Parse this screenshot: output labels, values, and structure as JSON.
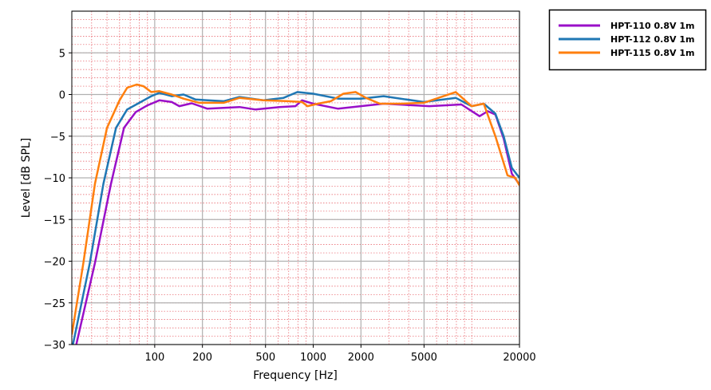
{
  "chart_data": {
    "type": "line",
    "title": "",
    "xlabel": "Frequency [Hz]",
    "ylabel": "Level [dB SPL]",
    "xscale": "log",
    "xlim": [
      30,
      20000
    ],
    "ylim": [
      -30,
      10
    ],
    "xticks": [
      100,
      200,
      500,
      1000,
      2000,
      5000,
      20000
    ],
    "xtick_labels": [
      "100",
      "200",
      "500",
      "1000",
      "2000",
      "5000",
      "20000"
    ],
    "yticks": [
      -30,
      -25,
      -20,
      -15,
      -10,
      -5,
      0,
      5
    ],
    "ytick_labels": [
      "−30",
      "−25",
      "−20",
      "−15",
      "−10",
      "−5",
      "0",
      "5"
    ],
    "grid": {
      "major": true,
      "minor": true,
      "major_color": "#b0b0b0",
      "minor_color": "#e0303a"
    },
    "legend": "outside-top-right",
    "series": [
      {
        "name": "HPT-110 0.8V 1m",
        "color": "#9a0fc8",
        "x": [
          32,
          42,
          53,
          64,
          76,
          90,
          107,
          128,
          143,
          171,
          215,
          343,
          433,
          614,
          773,
          850,
          1000,
          1435,
          2780,
          5400,
          8600,
          11200,
          12600,
          14100,
          15900,
          17900,
          20000
        ],
        "y": [
          -30,
          -20.2,
          -10.7,
          -4,
          -2.1,
          -1.3,
          -0.7,
          -0.9,
          -1.4,
          -1.05,
          -1.7,
          -1.5,
          -1.8,
          -1.5,
          -1.4,
          -0.7,
          -1.1,
          -1.7,
          -1.1,
          -1.4,
          -1.2,
          -2.6,
          -2,
          -2.4,
          -5.3,
          -9.5,
          -10.8
        ]
      },
      {
        "name": "HPT-112 0.8V 1m",
        "color": "#1f77b4",
        "x": [
          30.5,
          39,
          47.5,
          57,
          67,
          80,
          95,
          107,
          128,
          152,
          181,
          272,
          343,
          485,
          650,
          795,
          1000,
          1435,
          2000,
          2780,
          4980,
          7920,
          9980,
          11900,
          14100,
          15900,
          17900,
          20000
        ],
        "y": [
          -30,
          -20.2,
          -10.7,
          -4,
          -1.8,
          -1,
          -0.2,
          0.2,
          -0.2,
          0,
          -0.6,
          -0.8,
          -0.3,
          -0.7,
          -0.4,
          0.3,
          0.1,
          -0.5,
          -0.5,
          -0.2,
          -0.9,
          -0.4,
          -1.4,
          -1.1,
          -2.3,
          -5,
          -8.8,
          -10
        ]
      },
      {
        "name": "HPT-115 0.8V 1m",
        "color": "#ff7f0e",
        "x": [
          30,
          35.5,
          42,
          50,
          60,
          67,
          77,
          85,
          95,
          107,
          128,
          152,
          191,
          272,
          343,
          485,
          700,
          850,
          920,
          1070,
          1290,
          1550,
          1850,
          2150,
          2630,
          3500,
          4980,
          7920,
          9980,
          11900,
          14100,
          16800,
          18800,
          20000
        ],
        "y": [
          -28.8,
          -20.2,
          -10.7,
          -4,
          -0.7,
          0.8,
          1.2,
          1,
          0.3,
          0.4,
          0,
          -0.5,
          -1,
          -1,
          -0.4,
          -0.7,
          -0.8,
          -0.9,
          -1.4,
          -1.1,
          -0.8,
          0.1,
          0.3,
          -0.4,
          -1.1,
          -1.1,
          -1,
          0.3,
          -1.4,
          -1.1,
          -5,
          -9.7,
          -10,
          -10.9
        ]
      }
    ]
  }
}
